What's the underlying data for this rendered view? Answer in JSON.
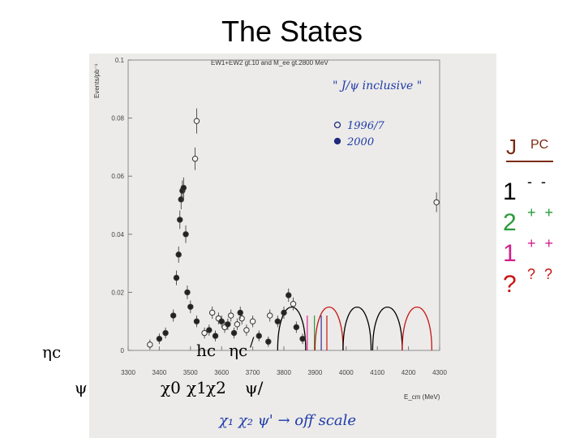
{
  "slide": {
    "title": "The States"
  },
  "chart_data": {
    "type": "scatter",
    "title": "EW1+EW2 gt.10 and M_ee gt.2800 MeV",
    "xlabel": "E_cm (MeV)",
    "ylabel": "Events/pb⁻¹",
    "xlim": [
      3300,
      4300
    ],
    "ylim": [
      0,
      0.1
    ],
    "x_ticks": [
      "3300",
      "3400",
      "3500",
      "3600",
      "3700",
      "3800",
      "3900",
      "4000",
      "4100",
      "4200",
      "4300"
    ],
    "y_ticks": [
      "0",
      "0.02",
      "0.04",
      "0.06",
      "0.08",
      "0.1"
    ],
    "x_tick_values": [
      3300,
      3400,
      3500,
      3600,
      3700,
      3800,
      3900,
      4000,
      4100,
      4200,
      4300
    ],
    "y_tick_values": [
      0,
      0.02,
      0.04,
      0.06,
      0.08,
      0.1
    ],
    "annotation": "\" J/ψ inclusive \"",
    "legend_position": "upper-right",
    "series": [
      {
        "name": "1996/7",
        "marker": "open",
        "points": [
          [
            3370,
            0.002
          ],
          [
            3520,
            0.079
          ],
          [
            3515,
            0.066
          ],
          [
            3545,
            0.006
          ],
          [
            3570,
            0.013
          ],
          [
            3590,
            0.011
          ],
          [
            3610,
            0.008
          ],
          [
            3630,
            0.012
          ],
          [
            3650,
            0.009
          ],
          [
            3665,
            0.011
          ],
          [
            3680,
            0.007
          ],
          [
            3700,
            0.01
          ],
          [
            3755,
            0.012
          ],
          [
            3830,
            0.016
          ],
          [
            4290,
            0.051
          ]
        ]
      },
      {
        "name": "2000",
        "marker": "filled",
        "points": [
          [
            3400,
            0.004
          ],
          [
            3420,
            0.006
          ],
          [
            3445,
            0.012
          ],
          [
            3455,
            0.025
          ],
          [
            3462,
            0.033
          ],
          [
            3466,
            0.045
          ],
          [
            3470,
            0.052
          ],
          [
            3474,
            0.055
          ],
          [
            3478,
            0.056
          ],
          [
            3485,
            0.04
          ],
          [
            3490,
            0.02
          ],
          [
            3500,
            0.015
          ],
          [
            3520,
            0.01
          ],
          [
            3560,
            0.007
          ],
          [
            3580,
            0.005
          ],
          [
            3600,
            0.01
          ],
          [
            3620,
            0.009
          ],
          [
            3640,
            0.006
          ],
          [
            3660,
            0.013
          ],
          [
            3720,
            0.005
          ],
          [
            3750,
            0.003
          ],
          [
            3780,
            0.01
          ],
          [
            3800,
            0.013
          ],
          [
            3815,
            0.019
          ],
          [
            3840,
            0.008
          ],
          [
            3860,
            0.004
          ]
        ]
      }
    ],
    "overlay_resonances": [
      {
        "x": 3875,
        "color": "#e0208a"
      },
      {
        "x": 3898,
        "color": "#2a9a3a"
      },
      {
        "x": 3920,
        "color": "#3a2a9a"
      },
      {
        "x": 3938,
        "color": "#c81414"
      }
    ],
    "overlay_arcs": [
      {
        "x1": 3780,
        "x2": 3870,
        "color": "#000000"
      },
      {
        "x1": 3900,
        "x2": 3990,
        "color": "#c81414"
      },
      {
        "x1": 3990,
        "x2": 4080,
        "color": "#000000"
      },
      {
        "x1": 4085,
        "x2": 4180,
        "color": "#000000"
      },
      {
        "x1": 4180,
        "x2": 4275,
        "color": "#c81414"
      }
    ],
    "handwritten_note": "χ₁ χ₂ ψ' → off scale"
  },
  "quantum_numbers": {
    "header_j": "J",
    "header_pc": "PC",
    "rows": [
      {
        "value": "1",
        "sup": "- -",
        "color": "#000000"
      },
      {
        "value": "2",
        "sup": "+ +",
        "color": "#2a9a3a"
      },
      {
        "value": "1",
        "sup": "+ +",
        "color": "#d01f8a"
      },
      {
        "value": "?",
        "sup": "? ?",
        "color": "#c81414"
      }
    ]
  },
  "states": {
    "eta_c": "ηc",
    "psi": "ψ",
    "h_c": "hc",
    "eta_c_prime": "ηc",
    "prime": "/",
    "chi0": "χ0",
    "chi1": "χ1",
    "chi2": "χ2",
    "psi_prime": "ψ/"
  }
}
